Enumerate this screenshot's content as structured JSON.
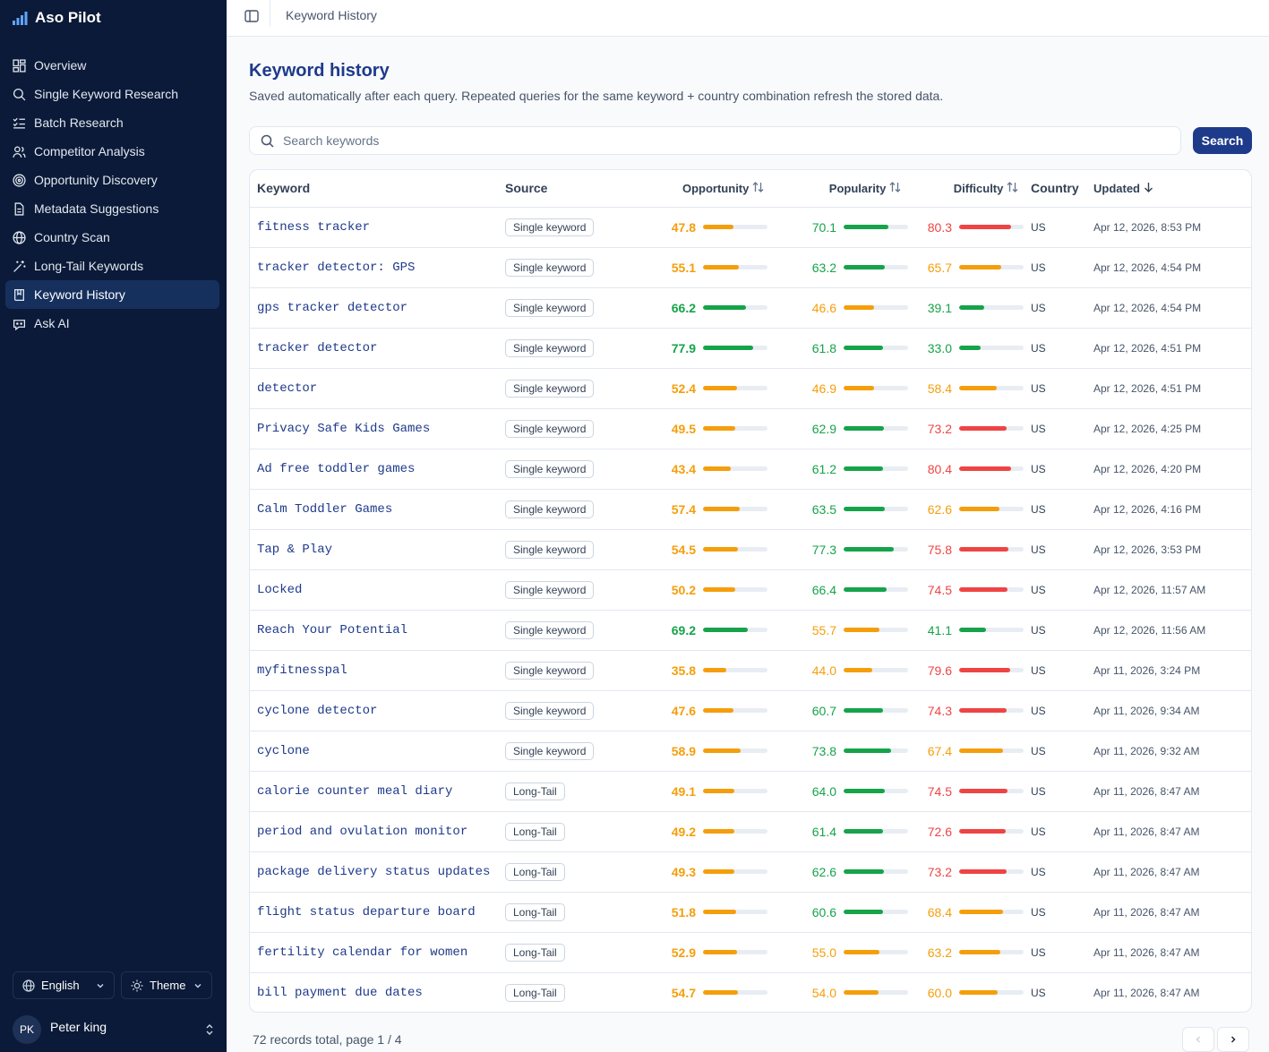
{
  "app": {
    "name": "Aso Pilot"
  },
  "sidebar": {
    "items": [
      {
        "label": "Overview",
        "icon": "dashboard-icon"
      },
      {
        "label": "Single Keyword Research",
        "icon": "search-icon"
      },
      {
        "label": "Batch Research",
        "icon": "list-check-icon"
      },
      {
        "label": "Competitor Analysis",
        "icon": "users-icon"
      },
      {
        "label": "Opportunity Discovery",
        "icon": "target-icon"
      },
      {
        "label": "Metadata Suggestions",
        "icon": "document-icon"
      },
      {
        "label": "Country Scan",
        "icon": "globe-icon"
      },
      {
        "label": "Long-Tail Keywords",
        "icon": "magic-wand-icon"
      },
      {
        "label": "Keyword History",
        "icon": "bookmark-book-icon",
        "active": true
      },
      {
        "label": "Ask AI",
        "icon": "chat-bot-icon"
      }
    ],
    "language": "English",
    "theme": "Theme",
    "user": {
      "initials": "PK",
      "name": "Peter king"
    }
  },
  "topbar": {
    "breadcrumb": "Keyword History"
  },
  "page": {
    "title": "Keyword history",
    "subtitle": "Saved automatically after each query. Repeated queries for the same keyword + country combination refresh the stored data."
  },
  "search": {
    "placeholder": "Search keywords",
    "value": "",
    "button": "Search"
  },
  "table": {
    "headers": {
      "keyword": "Keyword",
      "source": "Source",
      "opportunity": "Opportunity",
      "popularity": "Popularity",
      "difficulty": "Difficulty",
      "country": "Country",
      "updated": "Updated"
    },
    "rows": [
      {
        "keyword": "fitness tracker",
        "source": "Single keyword",
        "opportunity": "47.8",
        "popularity": "70.1",
        "difficulty": "80.3",
        "country": "US",
        "updated": "Apr 12, 2026, 8:53 PM"
      },
      {
        "keyword": "tracker detector: GPS",
        "source": "Single keyword",
        "opportunity": "55.1",
        "popularity": "63.2",
        "difficulty": "65.7",
        "country": "US",
        "updated": "Apr 12, 2026, 4:54 PM"
      },
      {
        "keyword": "gps tracker detector",
        "source": "Single keyword",
        "opportunity": "66.2",
        "popularity": "46.6",
        "difficulty": "39.1",
        "country": "US",
        "updated": "Apr 12, 2026, 4:54 PM"
      },
      {
        "keyword": "tracker detector",
        "source": "Single keyword",
        "opportunity": "77.9",
        "popularity": "61.8",
        "difficulty": "33.0",
        "country": "US",
        "updated": "Apr 12, 2026, 4:51 PM"
      },
      {
        "keyword": "detector",
        "source": "Single keyword",
        "opportunity": "52.4",
        "popularity": "46.9",
        "difficulty": "58.4",
        "country": "US",
        "updated": "Apr 12, 2026, 4:51 PM"
      },
      {
        "keyword": "Privacy Safe Kids Games",
        "source": "Single keyword",
        "opportunity": "49.5",
        "popularity": "62.9",
        "difficulty": "73.2",
        "country": "US",
        "updated": "Apr 12, 2026, 4:25 PM"
      },
      {
        "keyword": "Ad free toddler games",
        "source": "Single keyword",
        "opportunity": "43.4",
        "popularity": "61.2",
        "difficulty": "80.4",
        "country": "US",
        "updated": "Apr 12, 2026, 4:20 PM"
      },
      {
        "keyword": "Calm Toddler Games",
        "source": "Single keyword",
        "opportunity": "57.4",
        "popularity": "63.5",
        "difficulty": "62.6",
        "country": "US",
        "updated": "Apr 12, 2026, 4:16 PM"
      },
      {
        "keyword": "Tap & Play",
        "source": "Single keyword",
        "opportunity": "54.5",
        "popularity": "77.3",
        "difficulty": "75.8",
        "country": "US",
        "updated": "Apr 12, 2026, 3:53 PM"
      },
      {
        "keyword": "Locked",
        "source": "Single keyword",
        "opportunity": "50.2",
        "popularity": "66.4",
        "difficulty": "74.5",
        "country": "US",
        "updated": "Apr 12, 2026, 11:57 AM"
      },
      {
        "keyword": "Reach Your Potential",
        "source": "Single keyword",
        "opportunity": "69.2",
        "popularity": "55.7",
        "difficulty": "41.1",
        "country": "US",
        "updated": "Apr 12, 2026, 11:56 AM"
      },
      {
        "keyword": "myfitnesspal",
        "source": "Single keyword",
        "opportunity": "35.8",
        "popularity": "44.0",
        "difficulty": "79.6",
        "country": "US",
        "updated": "Apr 11, 2026, 3:24 PM"
      },
      {
        "keyword": "cyclone detector",
        "source": "Single keyword",
        "opportunity": "47.6",
        "popularity": "60.7",
        "difficulty": "74.3",
        "country": "US",
        "updated": "Apr 11, 2026, 9:34 AM"
      },
      {
        "keyword": "cyclone",
        "source": "Single keyword",
        "opportunity": "58.9",
        "popularity": "73.8",
        "difficulty": "67.4",
        "country": "US",
        "updated": "Apr 11, 2026, 9:32 AM"
      },
      {
        "keyword": "calorie counter meal diary",
        "source": "Long-Tail",
        "opportunity": "49.1",
        "popularity": "64.0",
        "difficulty": "74.5",
        "country": "US",
        "updated": "Apr 11, 2026, 8:47 AM"
      },
      {
        "keyword": "period and ovulation monitor",
        "source": "Long-Tail",
        "opportunity": "49.2",
        "popularity": "61.4",
        "difficulty": "72.6",
        "country": "US",
        "updated": "Apr 11, 2026, 8:47 AM"
      },
      {
        "keyword": "package delivery status updates",
        "source": "Long-Tail",
        "opportunity": "49.3",
        "popularity": "62.6",
        "difficulty": "73.2",
        "country": "US",
        "updated": "Apr 11, 2026, 8:47 AM"
      },
      {
        "keyword": "flight status departure board",
        "source": "Long-Tail",
        "opportunity": "51.8",
        "popularity": "60.6",
        "difficulty": "68.4",
        "country": "US",
        "updated": "Apr 11, 2026, 8:47 AM"
      },
      {
        "keyword": "fertility calendar for women",
        "source": "Long-Tail",
        "opportunity": "52.9",
        "popularity": "55.0",
        "difficulty": "63.2",
        "country": "US",
        "updated": "Apr 11, 2026, 8:47 AM"
      },
      {
        "keyword": "bill payment due dates",
        "source": "Long-Tail",
        "opportunity": "54.7",
        "popularity": "54.0",
        "difficulty": "60.0",
        "country": "US",
        "updated": "Apr 11, 2026, 8:47 AM"
      }
    ]
  },
  "pagination": {
    "summary": "72 records total, page 1 / 4"
  },
  "colors": {
    "sidebar_bg": "#0b1a38",
    "accent": "#1e3a8a",
    "green": "#16a34a",
    "amber": "#f59e0b",
    "red": "#ef4444"
  }
}
